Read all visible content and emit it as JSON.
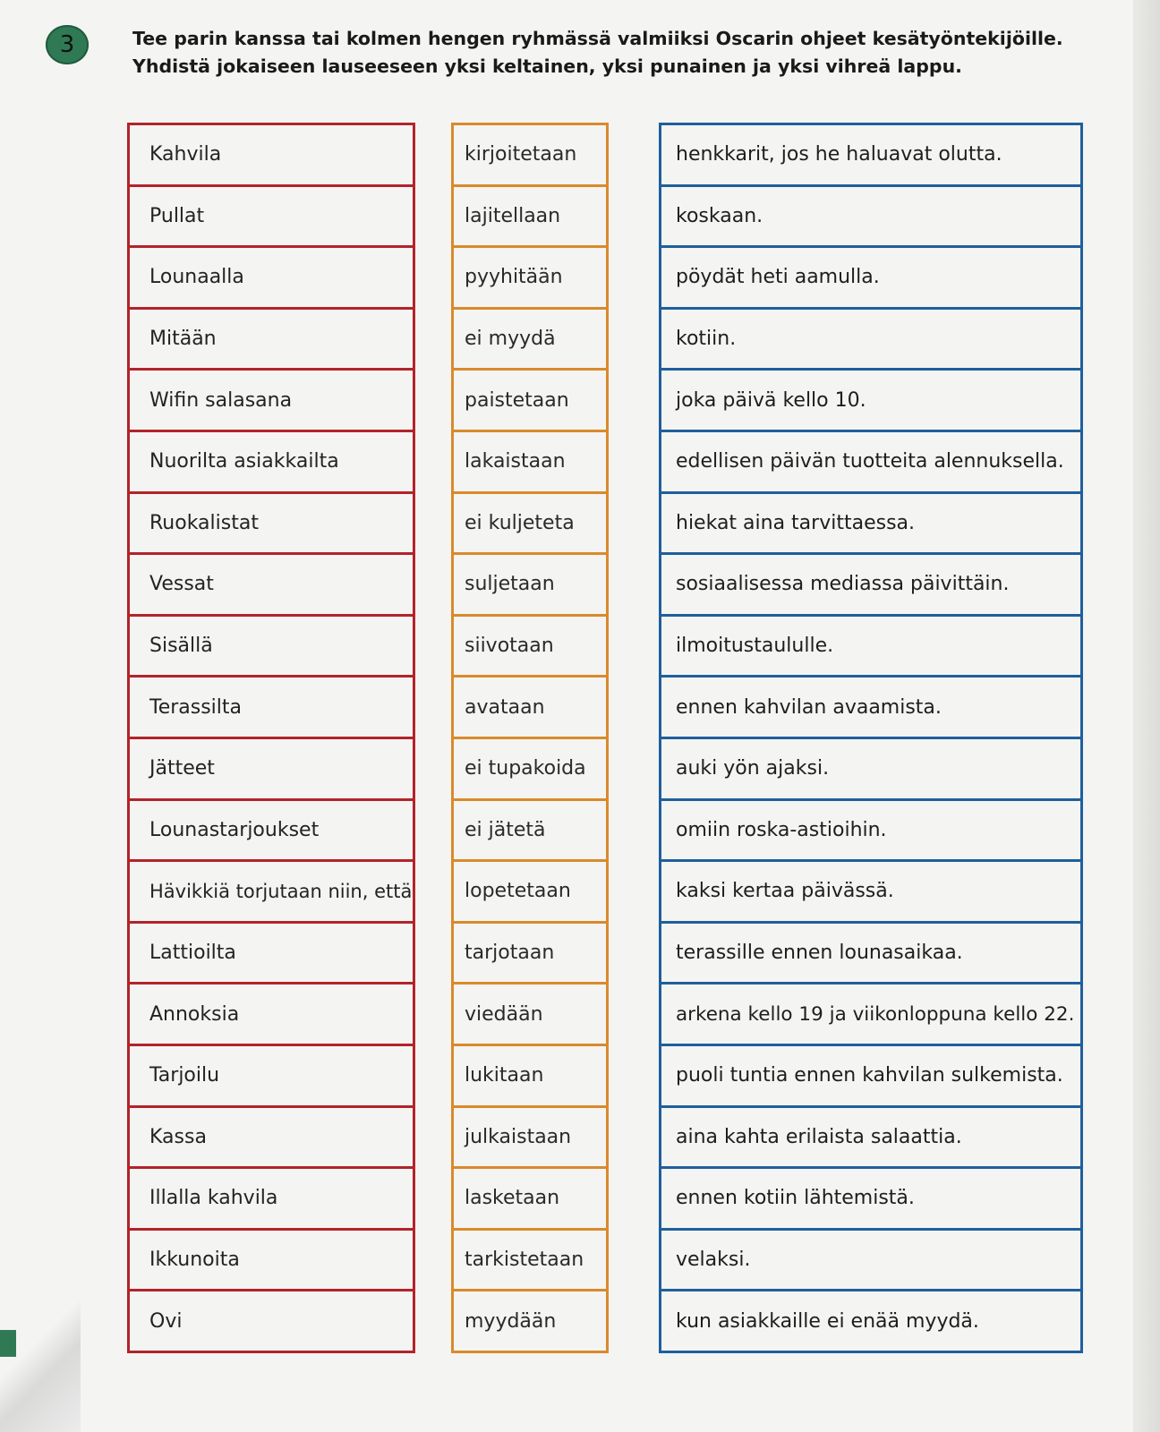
{
  "exercise": {
    "number": "3",
    "instruction_line1": "Tee parin kanssa tai kolmen hengen ryhmässä valmiiksi Oscarin ohjeet kesätyöntekijöille.",
    "instruction_line2": "Yhdistä jokaiseen lauseeseen yksi keltainen, yksi punainen ja yksi vihreä lappu."
  },
  "colors": {
    "red_card_border": "#b3232a",
    "orange_card_border": "#d98a2b",
    "blue_card_border": "#1f5f9c",
    "badge_green": "#2f7a55"
  },
  "subjects": [
    "Kahvila",
    "Pullat",
    "Lounaalla",
    "Mitään",
    "Wifin salasana",
    "Nuorilta asiakkailta",
    "Ruokalistat",
    "Vessat",
    "Sisällä",
    "Terassilta",
    "Jätteet",
    "Lounastarjoukset",
    "Hävikkiä torjutaan niin, että",
    "Lattioilta",
    "Annoksia",
    "Tarjoilu",
    "Kassa",
    "Illalla kahvila",
    "Ikkunoita",
    "Ovi"
  ],
  "verbs": [
    "kirjoitetaan",
    "lajitellaan",
    "pyyhitään",
    "ei myydä",
    "paistetaan",
    "lakaistaan",
    "ei kuljeteta",
    "suljetaan",
    "siivotaan",
    "avataan",
    "ei tupakoida",
    "ei jätetä",
    "lopetetaan",
    "tarjotaan",
    "viedään",
    "lukitaan",
    "julkaistaan",
    "lasketaan",
    "tarkistetaan",
    "myydään"
  ],
  "endings": [
    "henkkarit, jos he haluavat olutta.",
    "koskaan.",
    "pöydät heti aamulla.",
    "kotiin.",
    "joka päivä kello 10.",
    "edellisen päivän tuotteita alennuksella.",
    "hiekat aina tarvittaessa.",
    "sosiaalisessa mediassa päivittäin.",
    "ilmoitustaululle.",
    "ennen kahvilan avaamista.",
    "auki yön ajaksi.",
    "omiin roska-astioihin.",
    "kaksi kertaa päivässä.",
    "terassille ennen lounasaikaa.",
    "arkena kello 19 ja viikonloppuna kello 22.",
    "puoli tuntia ennen kahvilan sulkemista.",
    "aina kahta erilaista salaattia.",
    "ennen kotiin lähtemistä.",
    "velaksi.",
    "kun asiakkaille ei enää myydä."
  ]
}
